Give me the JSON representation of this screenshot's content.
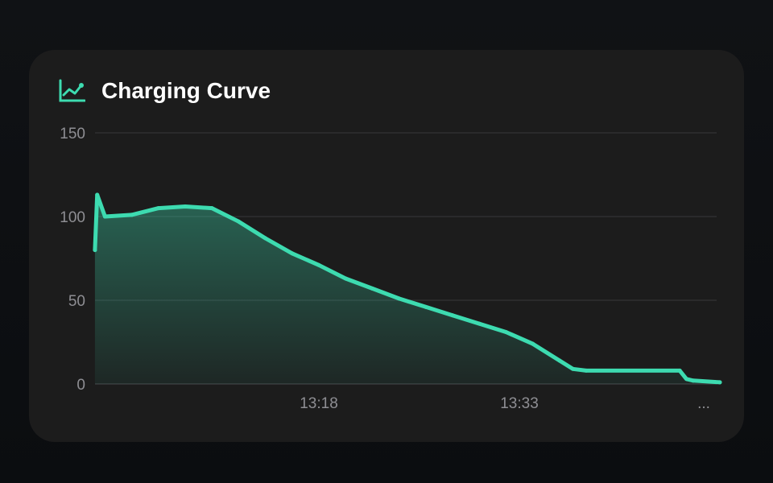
{
  "card": {
    "title": "Charging Curve",
    "icon": "line-chart-icon",
    "accent": "#3ddbb0"
  },
  "chart_data": {
    "type": "area",
    "title": "Charging Curve",
    "xlabel": "",
    "ylabel": "",
    "ylim": [
      0,
      150
    ],
    "yticks": [
      0,
      50,
      100,
      150
    ],
    "xticks": [
      "13:18",
      "13:33",
      "..."
    ],
    "grid": true,
    "color": "#3ddbb0",
    "points": [
      [
        "13:01:15",
        80
      ],
      [
        "13:01:25",
        113
      ],
      [
        "13:02:00",
        100
      ],
      [
        "13:04:00",
        101
      ],
      [
        "13:06:00",
        105
      ],
      [
        "13:08:00",
        106
      ],
      [
        "13:10:00",
        105
      ],
      [
        "13:12:00",
        97
      ],
      [
        "13:14:00",
        87
      ],
      [
        "13:16:00",
        78
      ],
      [
        "13:18:00",
        71
      ],
      [
        "13:20:00",
        63
      ],
      [
        "13:22:00",
        57
      ],
      [
        "13:24:00",
        51
      ],
      [
        "13:26:00",
        46
      ],
      [
        "13:28:00",
        41
      ],
      [
        "13:30:00",
        36
      ],
      [
        "13:32:00",
        31
      ],
      [
        "13:34:00",
        24
      ],
      [
        "13:36:00",
        14
      ],
      [
        "13:37:00",
        9
      ],
      [
        "13:38:00",
        8
      ],
      [
        "13:45:00",
        8
      ],
      [
        "13:45:30",
        3
      ],
      [
        "13:46:00",
        2
      ],
      [
        "13:48:00",
        1
      ]
    ]
  }
}
